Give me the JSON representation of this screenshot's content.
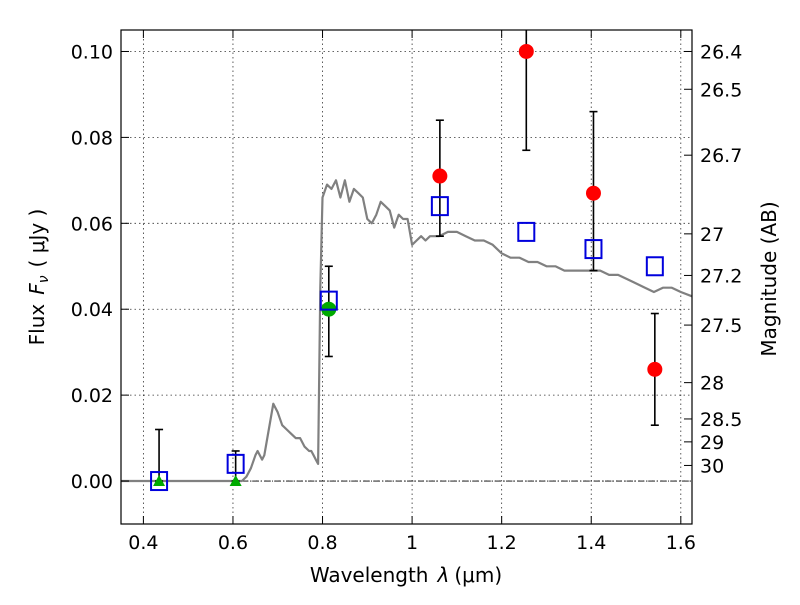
{
  "chart_data": {
    "type": "scatter",
    "xlabel_text": "Wavelength",
    "xlabel_symbol": "λ",
    "xlabel_unit": "(μm)",
    "ylabel_text": "Flux",
    "ylabel_symbol": "F",
    "ylabel_subscript": "ν",
    "ylabel_unit": "( μJy )",
    "ylabel_right": "Magnitude (AB)",
    "xlim": [
      0.35,
      1.625
    ],
    "ylim": [
      -0.01,
      0.105
    ],
    "grid": true,
    "x_ticks": [
      {
        "v": 0.4,
        "label": "0.4"
      },
      {
        "v": 0.6,
        "label": "0.6"
      },
      {
        "v": 0.8,
        "label": "0.8"
      },
      {
        "v": 1.0,
        "label": "1"
      },
      {
        "v": 1.2,
        "label": "1.2"
      },
      {
        "v": 1.4,
        "label": "1.4"
      },
      {
        "v": 1.6,
        "label": "1.6"
      }
    ],
    "y_ticks": [
      {
        "v": 0.0,
        "label": "0.00"
      },
      {
        "v": 0.02,
        "label": "0.02"
      },
      {
        "v": 0.04,
        "label": "0.04"
      },
      {
        "v": 0.06,
        "label": "0.06"
      },
      {
        "v": 0.08,
        "label": "0.08"
      },
      {
        "v": 0.1,
        "label": "0.10"
      }
    ],
    "mag_ticks": [
      {
        "mag": 26.4,
        "label": "26.4"
      },
      {
        "mag": 26.5,
        "label": "26.5"
      },
      {
        "mag": 26.7,
        "label": "26.7"
      },
      {
        "mag": 27,
        "label": "27"
      },
      {
        "mag": 27.2,
        "label": "27.2"
      },
      {
        "mag": 27.5,
        "label": "27.5"
      },
      {
        "mag": 28,
        "label": "28"
      },
      {
        "mag": 28.5,
        "label": "28.5"
      },
      {
        "mag": 29,
        "label": "29"
      },
      {
        "mag": 30,
        "label": "30"
      }
    ],
    "sed_model": {
      "color": "#808080",
      "x": [
        0.35,
        0.4,
        0.45,
        0.5,
        0.55,
        0.6,
        0.62,
        0.63,
        0.64,
        0.65,
        0.655,
        0.66,
        0.665,
        0.67,
        0.68,
        0.69,
        0.7,
        0.71,
        0.72,
        0.73,
        0.74,
        0.75,
        0.76,
        0.77,
        0.775,
        0.78,
        0.785,
        0.79,
        0.795,
        0.8,
        0.81,
        0.82,
        0.83,
        0.84,
        0.85,
        0.86,
        0.87,
        0.88,
        0.89,
        0.9,
        0.91,
        0.92,
        0.93,
        0.94,
        0.95,
        0.96,
        0.97,
        0.98,
        0.99,
        1.0,
        1.01,
        1.02,
        1.03,
        1.04,
        1.06,
        1.08,
        1.1,
        1.12,
        1.14,
        1.16,
        1.18,
        1.2,
        1.22,
        1.24,
        1.26,
        1.28,
        1.3,
        1.32,
        1.34,
        1.36,
        1.38,
        1.4,
        1.42,
        1.44,
        1.46,
        1.48,
        1.5,
        1.52,
        1.54,
        1.56,
        1.58,
        1.6,
        1.625
      ],
      "y": [
        0.0,
        0.0,
        0.0,
        0.0,
        0.0,
        0.0,
        0.0,
        0.001,
        0.003,
        0.006,
        0.007,
        0.006,
        0.005,
        0.006,
        0.012,
        0.018,
        0.016,
        0.013,
        0.012,
        0.011,
        0.01,
        0.01,
        0.008,
        0.007,
        0.007,
        0.006,
        0.005,
        0.004,
        0.045,
        0.066,
        0.069,
        0.068,
        0.07,
        0.066,
        0.07,
        0.065,
        0.068,
        0.067,
        0.066,
        0.061,
        0.06,
        0.062,
        0.065,
        0.064,
        0.063,
        0.059,
        0.062,
        0.061,
        0.061,
        0.055,
        0.056,
        0.057,
        0.056,
        0.057,
        0.057,
        0.058,
        0.058,
        0.057,
        0.056,
        0.056,
        0.055,
        0.053,
        0.052,
        0.052,
        0.051,
        0.051,
        0.05,
        0.05,
        0.049,
        0.049,
        0.049,
        0.049,
        0.049,
        0.048,
        0.048,
        0.047,
        0.046,
        0.045,
        0.044,
        0.045,
        0.045,
        0.044,
        0.043
      ]
    },
    "model_photometry": {
      "marker": "open-square",
      "color": "#0000dd",
      "x": [
        0.435,
        0.606,
        0.814,
        1.062,
        1.255,
        1.405,
        1.542
      ],
      "y": [
        0.0,
        0.004,
        0.042,
        0.064,
        0.058,
        0.054,
        0.05
      ]
    },
    "detections": {
      "marker": "filled-circle",
      "points": [
        {
          "x": 0.814,
          "y": 0.04,
          "ylo": 0.029,
          "yhi": 0.05,
          "color": "#00aa00"
        },
        {
          "x": 1.062,
          "y": 0.071,
          "ylo": 0.057,
          "yhi": 0.084,
          "color": "#ff0000"
        },
        {
          "x": 1.255,
          "y": 0.1,
          "ylo": 0.077,
          "yhi": 0.108,
          "color": "#ff0000"
        },
        {
          "x": 1.405,
          "y": 0.067,
          "ylo": 0.049,
          "yhi": 0.086,
          "color": "#ff0000"
        },
        {
          "x": 1.542,
          "y": 0.026,
          "ylo": 0.013,
          "yhi": 0.039,
          "color": "#ff0000"
        }
      ]
    },
    "upper_limits": {
      "marker": "filled-triangle",
      "color": "#00aa00",
      "points": [
        {
          "x": 0.435,
          "y": 0.0,
          "ylo": 0.0,
          "yhi": 0.012
        },
        {
          "x": 0.606,
          "y": 0.0,
          "ylo": 0.0,
          "yhi": 0.007
        }
      ]
    }
  }
}
